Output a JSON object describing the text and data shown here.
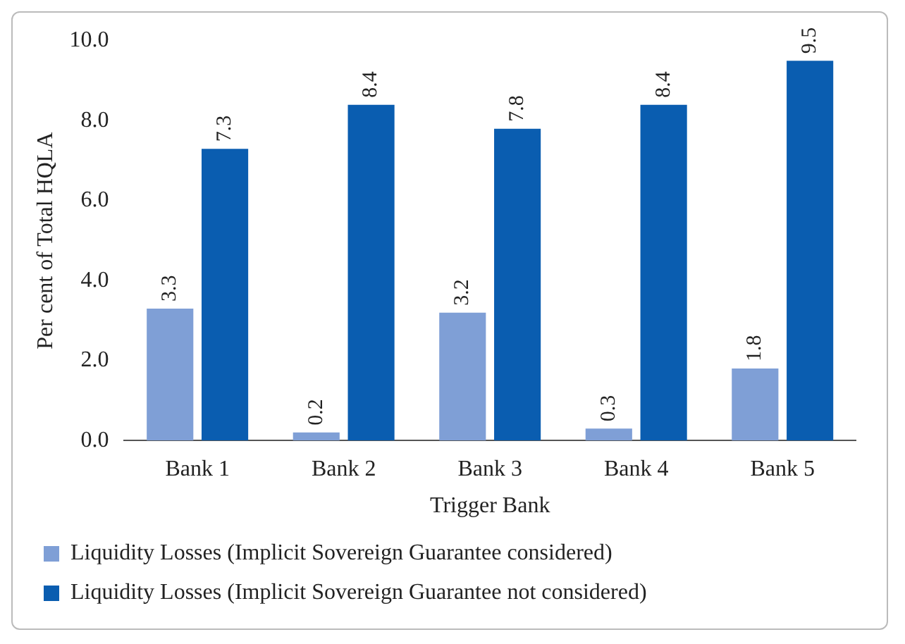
{
  "chart_data": {
    "type": "bar",
    "xlabel": "Trigger Bank",
    "ylabel": "Per cent of Total HQLA",
    "categories": [
      "Bank 1",
      "Bank 2",
      "Bank 3",
      "Bank 4",
      "Bank 5"
    ],
    "series": [
      {
        "name": "Liquidity Losses (Implicit Sovereign Guarantee considered)",
        "color": "#7f9fd6",
        "values": [
          3.3,
          0.2,
          3.2,
          0.3,
          1.8
        ]
      },
      {
        "name": "Liquidity Losses (Implicit Sovereign Guarantee not considered)",
        "color": "#0a5db0",
        "values": [
          7.3,
          8.4,
          7.8,
          8.4,
          9.5
        ]
      }
    ],
    "ylim": [
      0,
      10
    ],
    "yticks": [
      {
        "value": 0,
        "label": "0.0"
      },
      {
        "value": 2,
        "label": "2.0"
      },
      {
        "value": 4,
        "label": "4.0"
      },
      {
        "value": 6,
        "label": "6.0"
      },
      {
        "value": 8,
        "label": "8.0"
      },
      {
        "value": 10,
        "label": "10.0"
      }
    ],
    "grid": false,
    "legend": "bottom",
    "data_labels": true
  }
}
